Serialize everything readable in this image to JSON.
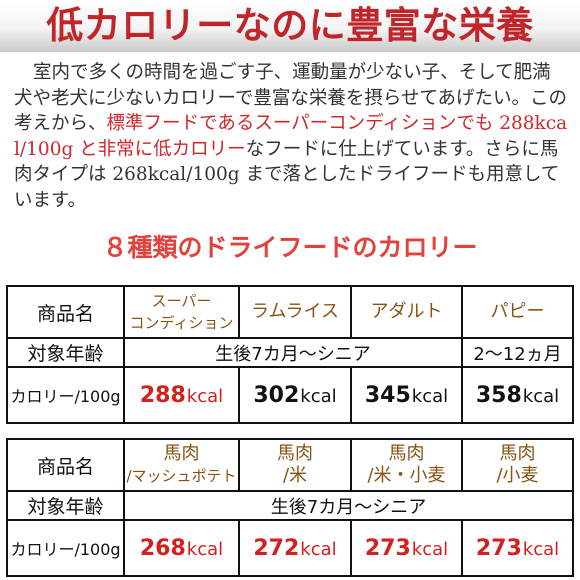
{
  "header": {
    "title": "低カロリーなのに豊富な栄養"
  },
  "intro": {
    "before": "室内で多くの時間を過ごす子、運動量が少ない子、そして肥満犬や老犬に少ないカロリーで豊富な栄養を摂らせてあげたい。この考えから、",
    "highlight": "標準フードであるスーパーコンディションでも 288kcal/100g と非常に低カロリー",
    "after": "なフードに仕上げています。さらに馬肉タイプは 268kcal/100g まで落としたドライフードも用意しています。"
  },
  "section_title": "８種類のドライフードのカロリー",
  "table1": {
    "col_header": "商品名",
    "products": [
      {
        "line1": "スーパー",
        "line2": "コンディション"
      },
      {
        "line1": "ラムライス",
        "line2": ""
      },
      {
        "line1": "アダルト",
        "line2": ""
      },
      {
        "line1": "パピー",
        "line2": ""
      }
    ],
    "age_label": "対象年齢",
    "age_main": "生後7カ月～シニア",
    "age_puppy": "2～12ヵ月",
    "kcal_label": "カロリー/100g",
    "unit": "kcal",
    "kcal": [
      "288",
      "302",
      "345",
      "358"
    ]
  },
  "table2": {
    "col_header": "商品名",
    "products": [
      {
        "line1": "馬肉",
        "line2": "/マッシュポテト"
      },
      {
        "line1": "馬肉",
        "line2": "/米"
      },
      {
        "line1": "馬肉",
        "line2": "/米・小麦"
      },
      {
        "line1": "馬肉",
        "line2": "/小麦"
      }
    ],
    "age_label": "対象年齢",
    "age_main": "生後7カ月～シニア",
    "kcal_label": "カロリー/100g",
    "unit": "kcal",
    "kcal": [
      "268",
      "272",
      "273",
      "273"
    ]
  },
  "colors": {
    "title_red": "#c0252a",
    "highlight_red": "#d0262c",
    "section_red": "#e2413c",
    "product_brown": "#8a5212",
    "kcal_red": "#d51e1e"
  }
}
